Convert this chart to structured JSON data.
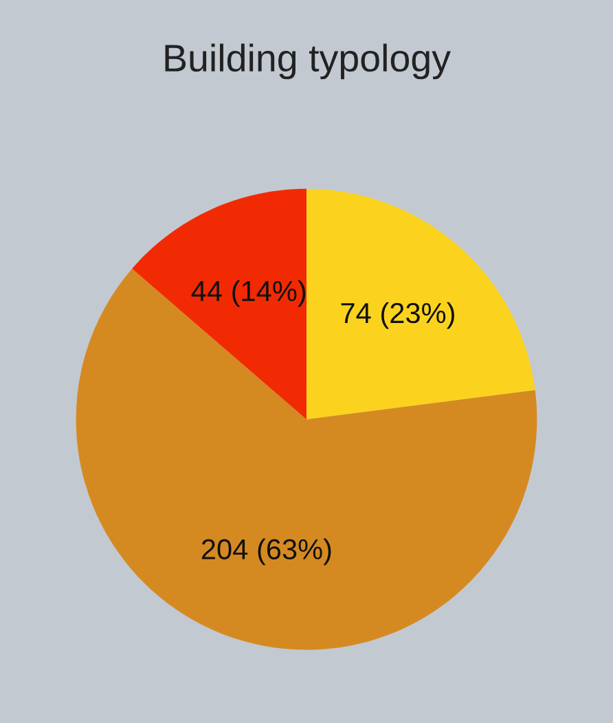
{
  "chart_data": {
    "type": "pie",
    "title": "Building typology",
    "categories": [
      null,
      null,
      null
    ],
    "values": [
      74,
      204,
      44
    ],
    "colors": [
      "#fbd31e",
      "#d58a21",
      "#f22a03"
    ],
    "value_labels": [
      "74 (23%)",
      "204 (63%)",
      "44 (14%)"
    ],
    "legend": false
  }
}
